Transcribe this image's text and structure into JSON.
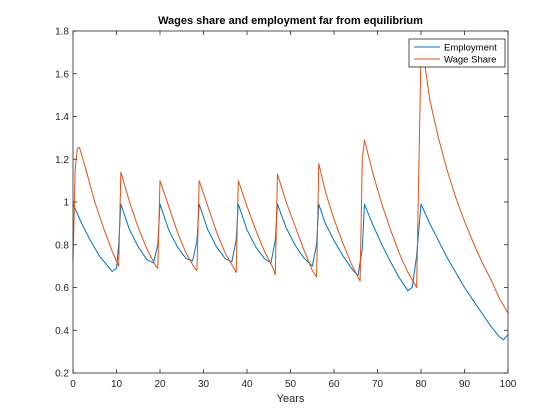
{
  "chart_data": {
    "type": "line",
    "title": "Wages share and employment far from equilibrium",
    "xlabel": "Years",
    "ylabel": "",
    "xlim": [
      0,
      100
    ],
    "ylim": [
      0.2,
      1.8
    ],
    "xticks": [
      0,
      10,
      20,
      30,
      40,
      50,
      60,
      70,
      80,
      90,
      100
    ],
    "yticks": [
      0.2,
      0.4,
      0.6,
      0.8,
      1,
      1.2,
      1.4,
      1.6,
      1.8
    ],
    "xtick_labels": [
      "0",
      "10",
      "20",
      "30",
      "40",
      "50",
      "60",
      "70",
      "80",
      "90",
      "100"
    ],
    "ytick_labels": [
      "0.2",
      "0.4",
      "0.6",
      "0.8",
      "1",
      "1.2",
      "1.4",
      "1.6",
      "1.8"
    ],
    "grid": false,
    "legend_position": "top-right",
    "series": [
      {
        "name": "Employment",
        "color": "#0072BD",
        "points": [
          [
            0,
            0.99
          ],
          [
            2,
            0.9
          ],
          [
            4,
            0.82
          ],
          [
            6,
            0.75
          ],
          [
            8,
            0.7
          ],
          [
            9,
            0.675
          ],
          [
            10,
            0.69
          ],
          [
            10.5,
            0.8
          ],
          [
            11,
            0.99
          ],
          [
            13,
            0.87
          ],
          [
            15,
            0.79
          ],
          [
            17,
            0.73
          ],
          [
            18.5,
            0.715
          ],
          [
            19.5,
            0.8
          ],
          [
            20,
            0.99
          ],
          [
            22,
            0.87
          ],
          [
            24,
            0.79
          ],
          [
            26,
            0.735
          ],
          [
            27.5,
            0.725
          ],
          [
            28.5,
            0.82
          ],
          [
            29,
            0.99
          ],
          [
            31,
            0.87
          ],
          [
            33,
            0.79
          ],
          [
            35,
            0.735
          ],
          [
            36.5,
            0.72
          ],
          [
            37.5,
            0.82
          ],
          [
            38,
            0.99
          ],
          [
            40,
            0.87
          ],
          [
            42,
            0.79
          ],
          [
            44,
            0.735
          ],
          [
            45.5,
            0.715
          ],
          [
            46.5,
            0.82
          ],
          [
            47,
            0.99
          ],
          [
            49,
            0.88
          ],
          [
            51,
            0.8
          ],
          [
            53,
            0.74
          ],
          [
            55,
            0.7
          ],
          [
            56,
            0.8
          ],
          [
            56.5,
            0.99
          ],
          [
            58,
            0.9
          ],
          [
            60,
            0.82
          ],
          [
            62,
            0.75
          ],
          [
            64,
            0.69
          ],
          [
            65.5,
            0.655
          ],
          [
            66.5,
            0.78
          ],
          [
            67,
            0.99
          ],
          [
            69,
            0.89
          ],
          [
            71,
            0.8
          ],
          [
            73,
            0.72
          ],
          [
            75,
            0.645
          ],
          [
            77,
            0.585
          ],
          [
            78,
            0.6
          ],
          [
            79,
            0.75
          ],
          [
            80,
            0.99
          ],
          [
            82,
            0.9
          ],
          [
            84,
            0.82
          ],
          [
            86,
            0.74
          ],
          [
            88,
            0.67
          ],
          [
            90,
            0.6
          ],
          [
            92,
            0.54
          ],
          [
            94,
            0.48
          ],
          [
            96,
            0.42
          ],
          [
            98,
            0.37
          ],
          [
            99,
            0.355
          ],
          [
            100,
            0.38
          ]
        ]
      },
      {
        "name": "Wage Share",
        "color": "#D95319",
        "points": [
          [
            0,
            0.72
          ],
          [
            0.5,
            1.15
          ],
          [
            1,
            1.25
          ],
          [
            1.5,
            1.255
          ],
          [
            3,
            1.15
          ],
          [
            5,
            1.0
          ],
          [
            7,
            0.88
          ],
          [
            9,
            0.77
          ],
          [
            10.5,
            0.7
          ],
          [
            11,
            1.14
          ],
          [
            13,
            1.0
          ],
          [
            15,
            0.88
          ],
          [
            17,
            0.78
          ],
          [
            19,
            0.7
          ],
          [
            19.5,
            0.69
          ],
          [
            20,
            1.1
          ],
          [
            22,
            0.98
          ],
          [
            24,
            0.86
          ],
          [
            26,
            0.76
          ],
          [
            28,
            0.69
          ],
          [
            28.5,
            0.68
          ],
          [
            29,
            1.1
          ],
          [
            31,
            0.98
          ],
          [
            33,
            0.86
          ],
          [
            35,
            0.76
          ],
          [
            37,
            0.69
          ],
          [
            37.5,
            0.67
          ],
          [
            38,
            1.1
          ],
          [
            40,
            0.98
          ],
          [
            42,
            0.87
          ],
          [
            44,
            0.77
          ],
          [
            46,
            0.69
          ],
          [
            46.5,
            0.66
          ],
          [
            47,
            1.13
          ],
          [
            49,
            1.0
          ],
          [
            51,
            0.89
          ],
          [
            53,
            0.78
          ],
          [
            55,
            0.68
          ],
          [
            56,
            0.65
          ],
          [
            56.5,
            1.18
          ],
          [
            58,
            1.05
          ],
          [
            60,
            0.92
          ],
          [
            62,
            0.81
          ],
          [
            64,
            0.71
          ],
          [
            66,
            0.63
          ],
          [
            66.5,
            1.2
          ],
          [
            67,
            1.29
          ],
          [
            69,
            1.13
          ],
          [
            71,
            0.99
          ],
          [
            73,
            0.87
          ],
          [
            75,
            0.76
          ],
          [
            77,
            0.67
          ],
          [
            79,
            0.6
          ],
          [
            80,
            1.7
          ],
          [
            80.5,
            1.7
          ],
          [
            82,
            1.48
          ],
          [
            84,
            1.3
          ],
          [
            86,
            1.15
          ],
          [
            88,
            1.02
          ],
          [
            90,
            0.91
          ],
          [
            92,
            0.81
          ],
          [
            94,
            0.72
          ],
          [
            96,
            0.64
          ],
          [
            98,
            0.55
          ],
          [
            100,
            0.48
          ]
        ]
      }
    ]
  }
}
